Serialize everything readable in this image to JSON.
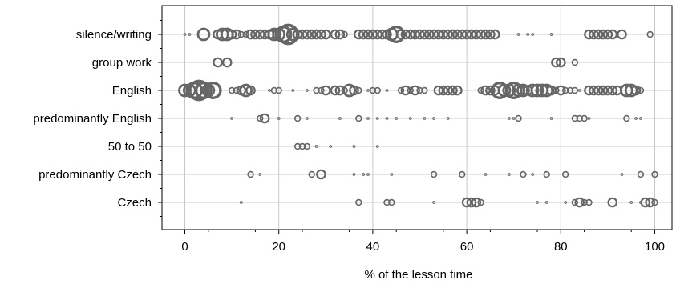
{
  "chart_data": {
    "type": "scatter",
    "title": "",
    "xlabel": "% of the lesson time",
    "ylabel": "",
    "xlim": [
      -5,
      104
    ],
    "x_ticks": [
      0,
      20,
      40,
      60,
      80,
      100
    ],
    "grid": true,
    "categories": [
      "silence/writing",
      "group work",
      "English",
      "predominantly English",
      "50 to 50",
      "predominantly Czech",
      "Czech"
    ],
    "series": [
      {
        "category": "silence/writing",
        "points": [
          [
            0,
            1
          ],
          [
            1,
            1
          ],
          [
            4,
            4
          ],
          [
            7,
            3
          ],
          [
            8,
            4
          ],
          [
            9,
            4
          ],
          [
            10,
            3
          ],
          [
            11,
            3
          ],
          [
            12,
            2
          ],
          [
            13,
            2
          ],
          [
            14,
            3
          ],
          [
            15,
            3
          ],
          [
            16,
            3
          ],
          [
            17,
            3
          ],
          [
            18,
            3
          ],
          [
            19,
            4
          ],
          [
            20,
            4
          ],
          [
            21,
            5
          ],
          [
            22,
            6
          ],
          [
            23,
            4
          ],
          [
            24,
            3
          ],
          [
            25,
            3
          ],
          [
            26,
            3
          ],
          [
            27,
            3
          ],
          [
            28,
            3
          ],
          [
            29,
            3
          ],
          [
            30,
            3
          ],
          [
            32,
            3
          ],
          [
            33,
            3
          ],
          [
            34,
            2
          ],
          [
            37,
            3
          ],
          [
            38,
            3
          ],
          [
            39,
            3
          ],
          [
            40,
            3
          ],
          [
            41,
            3
          ],
          [
            42,
            3
          ],
          [
            43,
            3
          ],
          [
            44,
            4
          ],
          [
            45,
            5
          ],
          [
            46,
            3
          ],
          [
            47,
            3
          ],
          [
            48,
            3
          ],
          [
            49,
            3
          ],
          [
            50,
            3
          ],
          [
            51,
            3
          ],
          [
            52,
            3
          ],
          [
            53,
            3
          ],
          [
            54,
            3
          ],
          [
            55,
            3
          ],
          [
            56,
            3
          ],
          [
            57,
            3
          ],
          [
            58,
            3
          ],
          [
            59,
            3
          ],
          [
            60,
            3
          ],
          [
            61,
            3
          ],
          [
            62,
            3
          ],
          [
            63,
            3
          ],
          [
            64,
            3
          ],
          [
            65,
            3
          ],
          [
            66,
            3
          ],
          [
            71,
            1
          ],
          [
            73,
            1
          ],
          [
            74,
            1
          ],
          [
            78,
            1
          ],
          [
            86,
            3
          ],
          [
            87,
            3
          ],
          [
            88,
            3
          ],
          [
            89,
            3
          ],
          [
            90,
            3
          ],
          [
            91,
            3
          ],
          [
            93,
            3
          ],
          [
            99,
            2
          ]
        ]
      },
      {
        "category": "group work",
        "points": [
          [
            7,
            3
          ],
          [
            9,
            3
          ],
          [
            79,
            3
          ],
          [
            80,
            3
          ],
          [
            83,
            2
          ]
        ]
      },
      {
        "category": "English",
        "points": [
          [
            0,
            4
          ],
          [
            1,
            4
          ],
          [
            2,
            5
          ],
          [
            3,
            6
          ],
          [
            4,
            5
          ],
          [
            5,
            4
          ],
          [
            6,
            5
          ],
          [
            10,
            2
          ],
          [
            11,
            2
          ],
          [
            12,
            3
          ],
          [
            13,
            4
          ],
          [
            14,
            3
          ],
          [
            18,
            1
          ],
          [
            19,
            2
          ],
          [
            20,
            2
          ],
          [
            23,
            1
          ],
          [
            26,
            1
          ],
          [
            28,
            2
          ],
          [
            29,
            2
          ],
          [
            30,
            3
          ],
          [
            32,
            3
          ],
          [
            33,
            3
          ],
          [
            34,
            2
          ],
          [
            35,
            4
          ],
          [
            36,
            3
          ],
          [
            37,
            2
          ],
          [
            39,
            1
          ],
          [
            40,
            2
          ],
          [
            41,
            2
          ],
          [
            43,
            1
          ],
          [
            46,
            2
          ],
          [
            47,
            3
          ],
          [
            48,
            2
          ],
          [
            49,
            3
          ],
          [
            50,
            2
          ],
          [
            51,
            2
          ],
          [
            54,
            3
          ],
          [
            55,
            3
          ],
          [
            56,
            3
          ],
          [
            57,
            3
          ],
          [
            58,
            3
          ],
          [
            63,
            2
          ],
          [
            64,
            3
          ],
          [
            65,
            3
          ],
          [
            66,
            3
          ],
          [
            67,
            5
          ],
          [
            68,
            4
          ],
          [
            69,
            4
          ],
          [
            70,
            5
          ],
          [
            71,
            4
          ],
          [
            72,
            4
          ],
          [
            73,
            3
          ],
          [
            74,
            4
          ],
          [
            75,
            4
          ],
          [
            76,
            4
          ],
          [
            77,
            4
          ],
          [
            78,
            3
          ],
          [
            79,
            2
          ],
          [
            80,
            3
          ],
          [
            81,
            2
          ],
          [
            82,
            2
          ],
          [
            83,
            2
          ],
          [
            84,
            1
          ],
          [
            86,
            3
          ],
          [
            87,
            3
          ],
          [
            88,
            3
          ],
          [
            89,
            3
          ],
          [
            90,
            3
          ],
          [
            91,
            3
          ],
          [
            92,
            3
          ],
          [
            94,
            4
          ],
          [
            95,
            4
          ],
          [
            96,
            3
          ],
          [
            97,
            2
          ]
        ]
      },
      {
        "category": "predominantly English",
        "points": [
          [
            10,
            1
          ],
          [
            16,
            2
          ],
          [
            17,
            3
          ],
          [
            20,
            1
          ],
          [
            24,
            2
          ],
          [
            26,
            1
          ],
          [
            33,
            1
          ],
          [
            37,
            2
          ],
          [
            39,
            1
          ],
          [
            41,
            1
          ],
          [
            43,
            1
          ],
          [
            45,
            1
          ],
          [
            48,
            1
          ],
          [
            51,
            1
          ],
          [
            53,
            1
          ],
          [
            56,
            1
          ],
          [
            69,
            1
          ],
          [
            70,
            1
          ],
          [
            71,
            2
          ],
          [
            78,
            1
          ],
          [
            83,
            2
          ],
          [
            84,
            2
          ],
          [
            85,
            2
          ],
          [
            86,
            1
          ],
          [
            94,
            2
          ],
          [
            96,
            1
          ],
          [
            97,
            1
          ]
        ]
      },
      {
        "category": "50 to 50",
        "points": [
          [
            24,
            2
          ],
          [
            25,
            2
          ],
          [
            26,
            2
          ],
          [
            28,
            1
          ],
          [
            31,
            1
          ],
          [
            36,
            1
          ],
          [
            41,
            1
          ]
        ]
      },
      {
        "category": "predominantly Czech",
        "points": [
          [
            14,
            2
          ],
          [
            16,
            1
          ],
          [
            27,
            2
          ],
          [
            29,
            3
          ],
          [
            36,
            1
          ],
          [
            38,
            1
          ],
          [
            39,
            1
          ],
          [
            44,
            1
          ],
          [
            53,
            2
          ],
          [
            59,
            2
          ],
          [
            64,
            1
          ],
          [
            69,
            1
          ],
          [
            72,
            2
          ],
          [
            74,
            1
          ],
          [
            77,
            2
          ],
          [
            81,
            2
          ],
          [
            93,
            1
          ],
          [
            97,
            2
          ],
          [
            100,
            2
          ]
        ]
      },
      {
        "category": "Czech",
        "points": [
          [
            12,
            1
          ],
          [
            37,
            2
          ],
          [
            43,
            2
          ],
          [
            44,
            2
          ],
          [
            53,
            1
          ],
          [
            60,
            3
          ],
          [
            61,
            3
          ],
          [
            62,
            3
          ],
          [
            63,
            2
          ],
          [
            75,
            1
          ],
          [
            77,
            1
          ],
          [
            81,
            1
          ],
          [
            83,
            2
          ],
          [
            84,
            3
          ],
          [
            85,
            2
          ],
          [
            86,
            2
          ],
          [
            91,
            3
          ],
          [
            95,
            1
          ],
          [
            97,
            1
          ],
          [
            98,
            3
          ],
          [
            99,
            3
          ],
          [
            100,
            2
          ]
        ]
      }
    ]
  }
}
